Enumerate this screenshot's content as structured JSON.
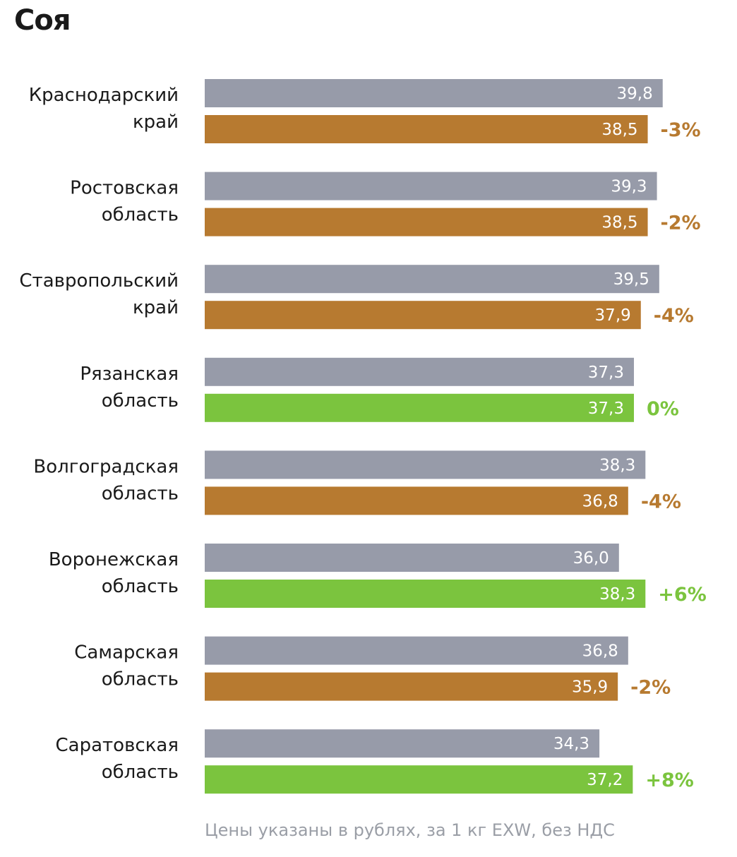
{
  "chart_data": {
    "type": "bar",
    "orientation": "horizontal",
    "title": "Соя",
    "note": "Цены указаны в рублях, за 1 кг EXW, без НДС",
    "categories": [
      [
        "Краснодарский",
        "край"
      ],
      [
        "Ростовская",
        "область"
      ],
      [
        "Ставропольский",
        "край"
      ],
      [
        "Рязанская",
        "область"
      ],
      [
        "Волгоградская",
        "область"
      ],
      [
        "Воронежская",
        "область"
      ],
      [
        "Самарская",
        "область"
      ],
      [
        "Саратовская",
        "область"
      ]
    ],
    "series": [
      {
        "values": [
          39.8,
          39.3,
          39.5,
          37.3,
          38.3,
          36.0,
          36.8,
          34.3
        ],
        "labels": [
          "39,8",
          "39,3",
          "39,5",
          "37,3",
          "38,3",
          "36,0",
          "36,8",
          "34,3"
        ]
      },
      {
        "values": [
          38.5,
          38.5,
          37.9,
          37.3,
          36.8,
          38.3,
          35.9,
          37.2
        ],
        "labels": [
          "38,5",
          "38,5",
          "37,9",
          "37,3",
          "36,8",
          "38,3",
          "35,9",
          "37,2"
        ]
      }
    ],
    "change_labels": [
      "-3%",
      "-2%",
      "-4%",
      "0%",
      "-4%",
      "+6%",
      "-2%",
      "+8%"
    ],
    "colors": {
      "previous": "#979ba9",
      "decrease": "#b77a30",
      "increase": "#7bc43e"
    }
  }
}
